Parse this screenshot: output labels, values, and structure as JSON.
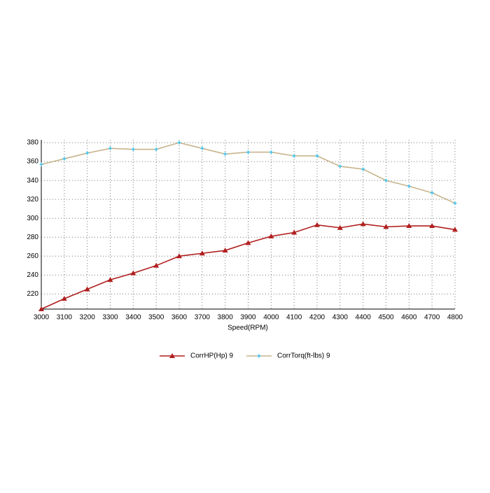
{
  "chart_data": {
    "type": "line",
    "x_label": "Speed(RPM)",
    "x": [
      3000,
      3100,
      3200,
      3300,
      3400,
      3500,
      3600,
      3700,
      3800,
      3900,
      4000,
      4100,
      4200,
      4300,
      4400,
      4500,
      4600,
      4700,
      4800
    ],
    "series": [
      {
        "name": "CorrHP(Hp) 9",
        "color": "#b01e1e",
        "marker": "triangle",
        "values": [
          204,
          215,
          225,
          235,
          242,
          250,
          260,
          263,
          266,
          274,
          281,
          285,
          293,
          290,
          294,
          291,
          292,
          292,
          288
        ]
      },
      {
        "name": "CorrTorq(ft-lbs) 9",
        "color": "#c8b48c",
        "marker_color": "#4cc4e8",
        "marker": "star",
        "values": [
          357,
          363,
          369,
          374,
          373,
          373,
          380,
          374,
          368,
          370,
          370,
          366,
          366,
          355,
          352,
          340,
          334,
          327,
          316
        ]
      }
    ],
    "xlim": [
      3000,
      4800
    ],
    "xticks": [
      3000,
      3100,
      3200,
      3300,
      3400,
      3500,
      3600,
      3700,
      3800,
      3900,
      4000,
      4100,
      4200,
      4300,
      4400,
      4500,
      4600,
      4700,
      4800
    ],
    "ylim": [
      204,
      383
    ],
    "yticks": [
      220,
      240,
      260,
      280,
      300,
      320,
      340,
      360,
      380
    ],
    "grid": true
  }
}
